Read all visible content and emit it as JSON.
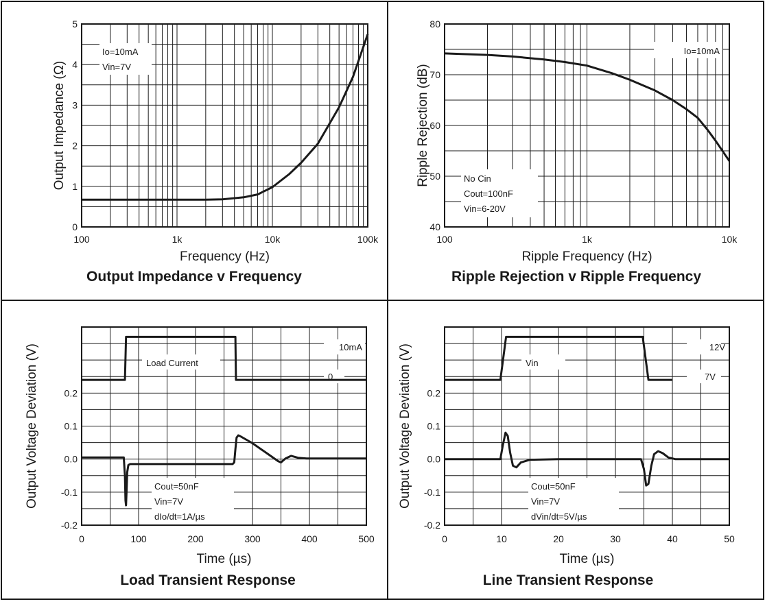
{
  "chart_data": [
    {
      "type": "line",
      "caption": "Output Impedance v Frequency",
      "xlabel": "Frequency (Hz)",
      "ylabel": "Output Impedance (Ω)",
      "x_scale": "log",
      "xlim": [
        100,
        100000
      ],
      "ylim": [
        0,
        5
      ],
      "x_ticks": [
        {
          "v": 100,
          "label": "100"
        },
        {
          "v": 1000,
          "label": "1k"
        },
        {
          "v": 10000,
          "label": "10k"
        },
        {
          "v": 100000,
          "label": "100k"
        }
      ],
      "y_ticks": [
        {
          "v": 0,
          "label": "0"
        },
        {
          "v": 1,
          "label": "1"
        },
        {
          "v": 2,
          "label": "2"
        },
        {
          "v": 3,
          "label": "3"
        },
        {
          "v": 4,
          "label": "4"
        },
        {
          "v": 5,
          "label": "5"
        }
      ],
      "grid": true,
      "annotations": [
        "Io=10mA",
        "Vin=7V"
      ],
      "series": [
        {
          "x": [
            100,
            500,
            1000,
            2000,
            3000,
            5000,
            7000,
            10000,
            15000,
            20000,
            30000,
            50000,
            70000,
            100000
          ],
          "y": [
            0.67,
            0.67,
            0.67,
            0.67,
            0.68,
            0.73,
            0.8,
            0.98,
            1.3,
            1.58,
            2.05,
            2.95,
            3.7,
            4.75
          ]
        }
      ]
    },
    {
      "type": "line",
      "caption": "Ripple Rejection v Ripple Frequency",
      "xlabel": "Ripple Frequency (Hz)",
      "ylabel": "Ripple Rejection (dB)",
      "x_scale": "log",
      "xlim": [
        100,
        10000
      ],
      "ylim": [
        40,
        80
      ],
      "x_ticks": [
        {
          "v": 100,
          "label": "100"
        },
        {
          "v": 1000,
          "label": "1k"
        },
        {
          "v": 10000,
          "label": "10k"
        }
      ],
      "y_ticks": [
        {
          "v": 40,
          "label": "40"
        },
        {
          "v": 50,
          "label": "50"
        },
        {
          "v": 60,
          "label": "60"
        },
        {
          "v": 70,
          "label": "70"
        },
        {
          "v": 80,
          "label": "80"
        }
      ],
      "grid": true,
      "annotations": [
        "Io=10mA",
        "No Cin",
        "Cout=100nF",
        "Vin=6-20V"
      ],
      "series": [
        {
          "x": [
            100,
            200,
            300,
            500,
            700,
            1000,
            1500,
            2000,
            3000,
            4000,
            5000,
            6000,
            7000,
            8000,
            10000
          ],
          "y": [
            74.2,
            73.9,
            73.6,
            73.0,
            72.5,
            71.8,
            70.3,
            69.0,
            66.9,
            65.0,
            63.2,
            61.5,
            59.2,
            57.0,
            53.0
          ]
        }
      ]
    },
    {
      "type": "line",
      "caption": "Load Transient Response",
      "xlabel": "Time (µs)",
      "ylabel": "Output Voltage Deviation (V)",
      "xlim": [
        0,
        500
      ],
      "ylim": [
        -0.2,
        0.4
      ],
      "x_ticks": [
        {
          "v": 0,
          "label": "0"
        },
        {
          "v": 100,
          "label": "100"
        },
        {
          "v": 200,
          "label": "200"
        },
        {
          "v": 300,
          "label": "300"
        },
        {
          "v": 400,
          "label": "400"
        },
        {
          "v": 500,
          "label": "500"
        }
      ],
      "y_ticks": [
        {
          "v": -0.2,
          "label": "-0.2"
        },
        {
          "v": -0.1,
          "label": "-0.1"
        },
        {
          "v": 0.0,
          "label": "0.0"
        },
        {
          "v": 0.1,
          "label": "0.1"
        },
        {
          "v": 0.2,
          "label": "0.2"
        }
      ],
      "grid": true,
      "step_labels": {
        "label": "Load Current",
        "high": "10mA",
        "low": "0"
      },
      "annotations": [
        "Cout=50nF",
        "Vin=7V",
        "dIo/dt=1A/µs"
      ],
      "series": [
        {
          "x": [
            0,
            76,
            78,
            80,
            83,
            86,
            100,
            200,
            268,
            270,
            271,
            273,
            276,
            278,
            300,
            330,
            345,
            350,
            358,
            368,
            380,
            395,
            500
          ],
          "y": [
            0.24,
            0.24,
            0.37,
            0.37,
            0.37,
            0.37,
            0.37,
            0.37,
            0.37,
            0.37,
            0.24,
            0.24,
            0.24,
            0.24,
            0.24,
            0.24,
            0.24,
            0.24,
            0.24,
            0.24,
            0.24,
            0.24,
            0.24
          ]
        },
        {
          "x": [
            0,
            74,
            76,
            77,
            78,
            79,
            80,
            82,
            85,
            100,
            200,
            265,
            268,
            270,
            272,
            275,
            278,
            300,
            330,
            345,
            350,
            358,
            368,
            380,
            395,
            500
          ],
          "y": [
            0.005,
            0.005,
            -0.05,
            -0.125,
            -0.14,
            -0.09,
            -0.04,
            -0.018,
            -0.015,
            -0.015,
            -0.015,
            -0.015,
            -0.01,
            0.03,
            0.065,
            0.072,
            0.07,
            0.048,
            0.012,
            -0.006,
            -0.01,
            0.002,
            0.01,
            0.004,
            0.002,
            0.002
          ]
        }
      ]
    },
    {
      "type": "line",
      "caption": "Line Transient Response",
      "xlabel": "Time (µs)",
      "ylabel": "Output Voltage Deviation (V)",
      "xlim": [
        0,
        50
      ],
      "ylim": [
        -0.2,
        0.4
      ],
      "x_ticks": [
        {
          "v": 0,
          "label": "0"
        },
        {
          "v": 10,
          "label": "10"
        },
        {
          "v": 20,
          "label": "20"
        },
        {
          "v": 30,
          "label": "30"
        },
        {
          "v": 40,
          "label": "40"
        },
        {
          "v": 50,
          "label": "50"
        }
      ],
      "y_ticks": [
        {
          "v": -0.2,
          "label": "-0.2"
        },
        {
          "v": -0.1,
          "label": "-0.1"
        },
        {
          "v": 0.0,
          "label": "0.0"
        },
        {
          "v": 0.1,
          "label": "0.1"
        },
        {
          "v": 0.2,
          "label": "0.2"
        }
      ],
      "grid": true,
      "step_labels": {
        "label": "Vin",
        "high": "12V",
        "low": "7V"
      },
      "annotations": [
        "Cout=50nF",
        "Vin=7V",
        "dVin/dt=5V/µs"
      ],
      "series": [
        {
          "x": [
            0,
            9.8,
            10.8,
            34.8,
            35.8,
            40
          ],
          "y": [
            0.24,
            0.24,
            0.37,
            0.37,
            0.24,
            0.24
          ]
        },
        {
          "x": [
            0,
            9.8,
            10.2,
            10.7,
            11.1,
            11.5,
            12.0,
            12.6,
            13.4,
            15.0,
            20,
            34.5,
            35.0,
            35.4,
            35.8,
            36.3,
            36.8,
            37.5,
            38.3,
            39.3,
            40.5,
            50
          ],
          "y": [
            0,
            0,
            0.04,
            0.08,
            0.07,
            0.02,
            -0.02,
            -0.025,
            -0.01,
            -0.002,
            0,
            0,
            -0.03,
            -0.08,
            -0.075,
            -0.02,
            0.015,
            0.024,
            0.018,
            0.005,
            0,
            0
          ]
        }
      ]
    }
  ]
}
